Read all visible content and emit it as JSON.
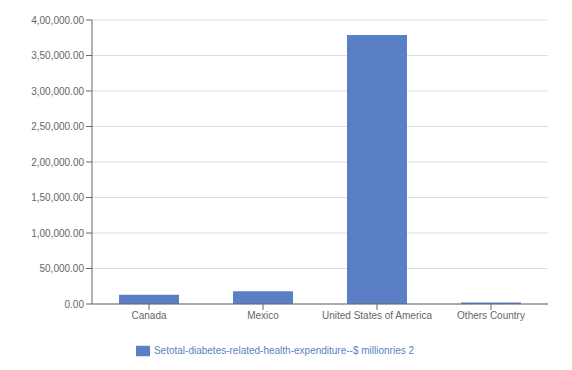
{
  "chart_data": {
    "type": "bar",
    "categories": [
      "Canada",
      "Mexico",
      "United States of America",
      "Others Country"
    ],
    "series": [
      {
        "name": "Setotal-diabetes-related-health-expenditure--$ millionries 2",
        "color": "#5b7fc4",
        "values": [
          13000,
          18000,
          379000,
          2000
        ]
      }
    ],
    "ylim": [
      0,
      400000
    ],
    "yticks": [
      {
        "value": 0,
        "label": "0.00"
      },
      {
        "value": 50000,
        "label": "50,000.00"
      },
      {
        "value": 100000,
        "label": "1,00,000.00"
      },
      {
        "value": 150000,
        "label": "1,50,000.00"
      },
      {
        "value": 200000,
        "label": "2,00,000.00"
      },
      {
        "value": 250000,
        "label": "2,50,000.00"
      },
      {
        "value": 300000,
        "label": "3,00,000.00"
      },
      {
        "value": 350000,
        "label": "3,50,000.00"
      },
      {
        "value": 400000,
        "label": "4,00,000.00"
      }
    ],
    "grid": true,
    "legend": "bottom"
  }
}
